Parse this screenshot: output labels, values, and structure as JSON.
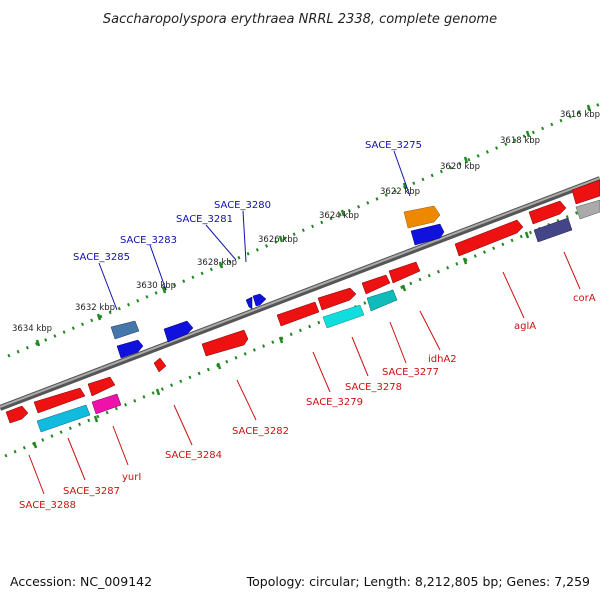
{
  "title": "Saccharopolyspora erythraea NRRL 2338, complete genome",
  "footer": {
    "accession": "Accession: NC_009142",
    "summary": "Topology: circular; Length: 8,212,805 bp; Genes: 7,259"
  },
  "colors": {
    "red": "#ee1111",
    "blue": "#1111dd",
    "orange": "#ee8800",
    "cyan": "#11dddd",
    "teal": "#11bbbb",
    "magenta": "#ee11aa",
    "steel": "#4477aa",
    "slate": "#444488",
    "backbone": "#777777",
    "ruler": "#228822",
    "label_top": "#1111aa",
    "label_bottom": "#cc1111"
  },
  "scale_labels": [
    "3616 kbp",
    "3618 kbp",
    "3620 kbp",
    "3622 kbp",
    "3624 kbp",
    "3626 kbp",
    "3628 kbp",
    "3630 kbp",
    "3632 kbp",
    "3634 kbp"
  ],
  "top_gene_labels": [
    "SACE_3275",
    "SACE_3280",
    "SACE_3281",
    "SACE_3283",
    "SACE_3285"
  ],
  "bottom_gene_labels": [
    "corA",
    "aglA",
    "idhA2",
    "SACE_3277",
    "SACE_3278",
    "SACE_3279",
    "SACE_3282",
    "SACE_3284",
    "yurI",
    "SACE_3287",
    "SACE_3288"
  ]
}
